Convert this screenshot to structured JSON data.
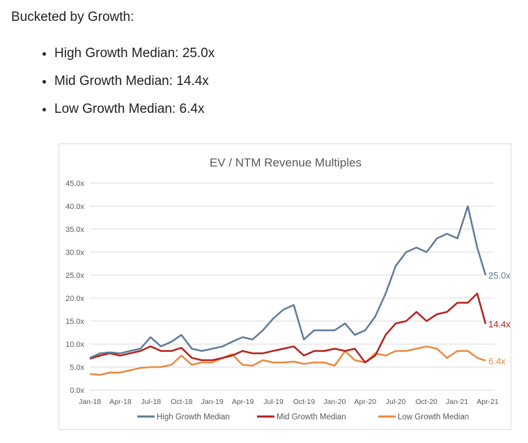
{
  "intro": "Bucketed by Growth:",
  "bullets": [
    "High Growth Median: 25.0x",
    "Mid Growth Median: 14.4x",
    "Low Growth Median: 6.4x"
  ],
  "chart_data": {
    "type": "line",
    "title": "EV / NTM Revenue Multiples",
    "ylim": [
      0,
      45
    ],
    "yticks": [
      "0.0x",
      "5.0x",
      "10.0x",
      "15.0x",
      "20.0x",
      "25.0x",
      "30.0x",
      "35.0x",
      "40.0x",
      "45.0x"
    ],
    "xticks": [
      "Jan-18",
      "Apr-18",
      "Jul-18",
      "Oct-18",
      "Jan-19",
      "Apr-19",
      "Jul-19",
      "Oct-19",
      "Jan-20",
      "Apr-20",
      "Jul-20",
      "Oct-20",
      "Jan-21",
      "Apr-21"
    ],
    "xlim": [
      "2018-01-01",
      "2021-04-01"
    ],
    "grid": true,
    "legend": "bottom",
    "x": [
      "2018-01-01",
      "2018-02-01",
      "2018-03-01",
      "2018-04-01",
      "2018-05-01",
      "2018-06-01",
      "2018-07-01",
      "2018-08-01",
      "2018-09-01",
      "2018-10-01",
      "2018-11-01",
      "2018-12-01",
      "2019-01-01",
      "2019-02-01",
      "2019-03-01",
      "2019-04-01",
      "2019-05-01",
      "2019-06-01",
      "2019-07-01",
      "2019-08-01",
      "2019-09-01",
      "2019-10-01",
      "2019-11-01",
      "2019-12-01",
      "2020-01-01",
      "2020-02-01",
      "2020-03-01",
      "2020-04-01",
      "2020-05-01",
      "2020-06-01",
      "2020-07-01",
      "2020-08-01",
      "2020-09-01",
      "2020-10-01",
      "2020-11-01",
      "2020-12-01",
      "2021-01-01",
      "2021-02-01",
      "2021-03-01",
      "2021-03-26"
    ],
    "series": [
      {
        "name": "High Growth Median",
        "color": "#5f7b99",
        "end_label": "25.0x",
        "values": [
          7,
          8,
          8.2,
          8,
          8.5,
          9,
          11.5,
          9.5,
          10.5,
          12,
          9,
          8.5,
          9,
          9.5,
          10.5,
          11.5,
          11,
          13,
          15.5,
          17.5,
          18.5,
          11,
          13,
          13,
          13,
          14.5,
          12,
          13,
          16,
          21,
          27,
          30,
          31,
          30,
          33,
          34,
          33,
          40,
          31,
          25
        ]
      },
      {
        "name": "Mid Growth Median",
        "color": "#b5201b",
        "end_label": "14.4x",
        "values": [
          6.8,
          7.5,
          8,
          7.5,
          8,
          8.5,
          9.5,
          8.5,
          8.5,
          9.2,
          7,
          6.5,
          6.5,
          7,
          7.5,
          8.5,
          8,
          8,
          8.5,
          9,
          9.5,
          7.5,
          8.5,
          8.5,
          9,
          8.5,
          9,
          6,
          7.5,
          12,
          14.5,
          15,
          17,
          15,
          16.5,
          17,
          19,
          19,
          21,
          14.4
        ]
      },
      {
        "name": "Low Growth Median",
        "color": "#e88a3e",
        "end_label": "6.4x",
        "values": [
          3.5,
          3.3,
          3.8,
          3.8,
          4.3,
          4.8,
          5,
          5,
          5.5,
          7.5,
          5.5,
          6,
          6,
          7,
          7.8,
          5.5,
          5.3,
          6.5,
          6,
          6,
          6.2,
          5.7,
          6,
          6,
          5.3,
          8.5,
          6.5,
          6,
          8,
          7.5,
          8.5,
          8.5,
          9,
          9.5,
          9,
          7,
          8.5,
          8.5,
          7,
          6.4
        ]
      }
    ]
  }
}
